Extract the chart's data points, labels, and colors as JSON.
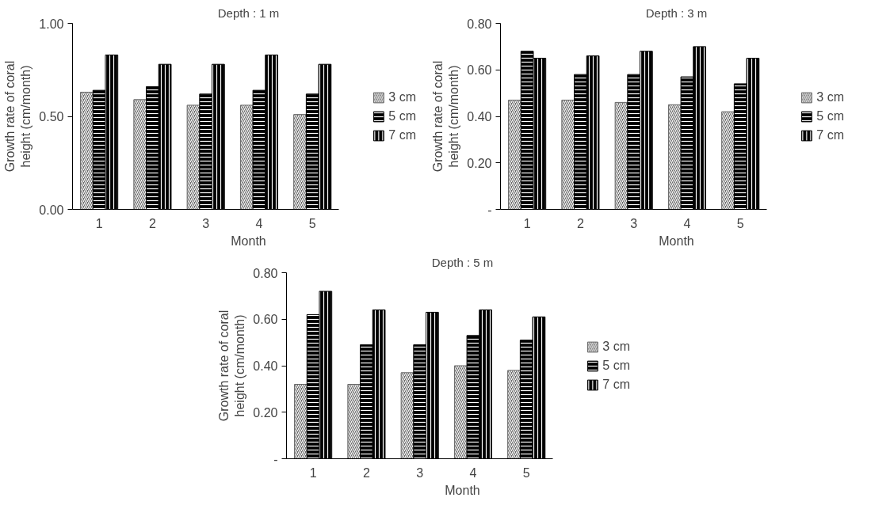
{
  "chart_data": [
    {
      "type": "bar",
      "title": "Depth : 1 m",
      "xlabel": "Month",
      "ylabel": "Growth rate of coral height (cm/month)",
      "categories": [
        "1",
        "2",
        "3",
        "4",
        "5"
      ],
      "series": [
        {
          "name": "3 cm",
          "color": "#666666",
          "values": [
            0.63,
            0.59,
            0.56,
            0.56,
            0.51
          ]
        },
        {
          "name": "5 cm",
          "color": "#000000",
          "values": [
            0.64,
            0.66,
            0.62,
            0.64,
            0.62
          ]
        },
        {
          "name": "7 cm",
          "color": "#000000",
          "values": [
            0.83,
            0.78,
            0.78,
            0.83,
            0.78
          ]
        }
      ],
      "ylim": [
        0,
        1
      ],
      "yticks": [
        {
          "value": 0,
          "label": "0.00"
        },
        {
          "value": 0.5,
          "label": "0.50"
        },
        {
          "value": 1,
          "label": "1.00"
        }
      ],
      "grid": false,
      "legend": "right"
    },
    {
      "type": "bar",
      "title": "Depth : 3 m",
      "xlabel": "Month",
      "ylabel": "Growth rate of coral height (cm/month)",
      "categories": [
        "1",
        "2",
        "3",
        "4",
        "5"
      ],
      "series": [
        {
          "name": "3 cm",
          "color": "#666666",
          "values": [
            0.47,
            0.47,
            0.46,
            0.45,
            0.42
          ]
        },
        {
          "name": "5 cm",
          "color": "#000000",
          "values": [
            0.68,
            0.58,
            0.58,
            0.57,
            0.54
          ]
        },
        {
          "name": "7 cm",
          "color": "#000000",
          "values": [
            0.65,
            0.66,
            0.68,
            0.7,
            0.65
          ]
        }
      ],
      "ylim": [
        0,
        0.8
      ],
      "yticks": [
        {
          "value": 0,
          "label": "-"
        },
        {
          "value": 0.2,
          "label": "0.20"
        },
        {
          "value": 0.4,
          "label": "0.40"
        },
        {
          "value": 0.6,
          "label": "0.60"
        },
        {
          "value": 0.8,
          "label": "0.80"
        }
      ],
      "grid": false,
      "legend": "right"
    },
    {
      "type": "bar",
      "title": "Depth : 5 m",
      "xlabel": "Month",
      "ylabel": "Growth rate of coral height (cm/month)",
      "categories": [
        "1",
        "2",
        "3",
        "4",
        "5"
      ],
      "series": [
        {
          "name": "3 cm",
          "color": "#666666",
          "values": [
            0.32,
            0.32,
            0.37,
            0.4,
            0.38
          ]
        },
        {
          "name": "5 cm",
          "color": "#000000",
          "values": [
            0.62,
            0.49,
            0.49,
            0.53,
            0.51
          ]
        },
        {
          "name": "7 cm",
          "color": "#000000",
          "values": [
            0.72,
            0.64,
            0.63,
            0.64,
            0.61
          ]
        }
      ],
      "ylim": [
        0,
        0.8
      ],
      "yticks": [
        {
          "value": 0,
          "label": "-"
        },
        {
          "value": 0.2,
          "label": "0.20"
        },
        {
          "value": 0.4,
          "label": "0.40"
        },
        {
          "value": 0.6,
          "label": "0.60"
        },
        {
          "value": 0.8,
          "label": "0.80"
        }
      ],
      "grid": false,
      "legend": "right"
    }
  ]
}
